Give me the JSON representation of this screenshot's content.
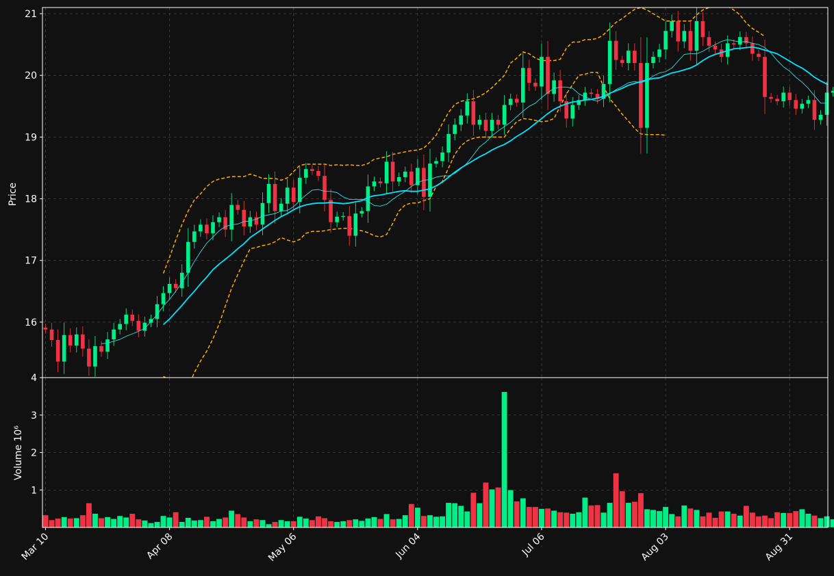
{
  "chart_data": {
    "type": "candlestick",
    "price_panel": {
      "ylabel": "Price",
      "ylim": [
        15.1,
        21.1
      ],
      "yticks": [
        16,
        17,
        18,
        19,
        20,
        21
      ],
      "grid": true
    },
    "volume_panel": {
      "ylabel": "Volume  10⁶",
      "ylim": [
        0,
        4
      ],
      "yticks": [
        1,
        2,
        3,
        4
      ],
      "grid": true
    },
    "xticks": [
      {
        "label": "Mar 10",
        "index": 0
      },
      {
        "label": "Apr 08",
        "index": 20
      },
      {
        "label": "May 06",
        "index": 40
      },
      {
        "label": "Jun 04",
        "index": 60
      },
      {
        "label": "Jul 06",
        "index": 80
      },
      {
        "label": "Aug 03",
        "index": 100
      },
      {
        "label": "Aug 31",
        "index": 120
      }
    ],
    "colors": {
      "background": "#111111",
      "up": "#00ee88",
      "down": "#ee3344",
      "ma_fast": "#33dddd",
      "ma_slow": "#00e5ff",
      "bands": "#ffaa00",
      "axes": "#ffffff",
      "grid": "#444444"
    },
    "close": [
      15.88,
      15.71,
      15.36,
      15.79,
      15.62,
      15.8,
      15.57,
      15.28,
      15.61,
      15.52,
      15.72,
      15.88,
      15.97,
      16.12,
      16.02,
      15.86,
      15.99,
      16.05,
      16.29,
      16.47,
      16.62,
      16.55,
      16.8,
      17.3,
      17.47,
      17.58,
      17.44,
      17.62,
      17.7,
      17.5,
      17.9,
      17.82,
      17.55,
      17.7,
      17.58,
      17.93,
      18.24,
      17.8,
      17.92,
      18.18,
      17.95,
      18.34,
      18.48,
      18.45,
      18.37,
      17.98,
      17.62,
      17.71,
      17.72,
      17.4,
      17.76,
      17.8,
      18.2,
      18.28,
      18.25,
      18.6,
      18.28,
      18.35,
      18.44,
      18.22,
      18.5,
      18.03,
      18.57,
      18.61,
      18.75,
      19.05,
      19.2,
      19.35,
      19.58,
      19.2,
      19.28,
      19.1,
      19.28,
      19.2,
      19.52,
      19.62,
      19.56,
      20.12,
      19.88,
      19.82,
      20.3,
      19.7,
      19.92,
      19.58,
      19.3,
      19.52,
      19.6,
      19.72,
      19.7,
      19.62,
      19.86,
      20.56,
      20.25,
      20.2,
      20.4,
      20.2,
      19.15,
      20.2,
      20.3,
      20.42,
      20.72,
      20.88,
      20.55,
      20.72,
      20.4,
      20.88,
      20.62,
      20.48,
      20.42,
      20.3,
      20.52,
      20.5,
      20.62,
      20.52,
      20.35,
      20.3,
      19.65,
      19.62,
      19.58,
      19.72,
      19.6,
      19.46,
      19.54,
      19.6,
      19.28,
      19.36,
      19.72,
      19.75,
      19.87,
      19.7,
      19.6
    ],
    "sma_fast_start": 9,
    "sma_fast": [
      15.65,
      15.66,
      15.69,
      15.72,
      15.77,
      15.81,
      15.85,
      15.9,
      16.01,
      16.12,
      16.26,
      16.37,
      16.5,
      16.64,
      16.8,
      16.98,
      17.14,
      17.28,
      17.38,
      17.48,
      17.55,
      17.58,
      17.59,
      17.63,
      17.64,
      17.67,
      17.72,
      17.74,
      17.76,
      17.8,
      17.81,
      17.87,
      17.97,
      18.06,
      18.14,
      18.15,
      18.12,
      18.12,
      18.1,
      18.03,
      17.99,
      17.99,
      17.99,
      17.96,
      17.89,
      17.88,
      17.91,
      17.99,
      18.06,
      18.12,
      18.2,
      18.26,
      18.3,
      18.31,
      18.35,
      18.37,
      18.37,
      18.41,
      18.49,
      18.58,
      18.71,
      18.84,
      18.92,
      19.02,
      19.1,
      19.17,
      19.24,
      19.33,
      19.42,
      19.5,
      19.55,
      19.64,
      19.72,
      19.79,
      19.81,
      19.81,
      19.79,
      19.7,
      19.65,
      19.61,
      19.58,
      19.63,
      19.7,
      19.77,
      19.82,
      19.88,
      19.9,
      19.88,
      19.92,
      19.99,
      20.04,
      20.06,
      20.12,
      20.23,
      20.34,
      20.35,
      20.35,
      20.39,
      20.45,
      20.5,
      20.55,
      20.58,
      20.56,
      20.54,
      20.55,
      20.52,
      20.5,
      20.45,
      20.36,
      20.24,
      20.14,
      20.07,
      19.97,
      19.89,
      19.79,
      19.67,
      19.55,
      19.55,
      19.57,
      19.59,
      19.59,
      19.59
    ],
    "sma_slow_start": 19,
    "sma_slow": [
      15.96,
      16.05,
      16.16,
      16.27,
      16.39,
      16.5,
      16.62,
      16.73,
      16.85,
      16.94,
      17.02,
      17.1,
      17.19,
      17.27,
      17.37,
      17.44,
      17.51,
      17.58,
      17.65,
      17.71,
      17.76,
      17.82,
      17.87,
      17.9,
      17.92,
      17.93,
      17.93,
      17.94,
      17.93,
      17.92,
      17.93,
      17.95,
      17.97,
      18.02,
      18.05,
      18.06,
      18.08,
      18.1,
      18.12,
      18.13,
      18.12,
      18.12,
      18.14,
      18.16,
      18.21,
      18.27,
      18.35,
      18.43,
      18.5,
      18.56,
      18.62,
      18.68,
      18.73,
      18.79,
      18.84,
      18.88,
      18.94,
      19.01,
      19.07,
      19.14,
      19.22,
      19.3,
      19.38,
      19.45,
      19.5,
      19.54,
      19.57,
      19.58,
      19.6,
      19.61,
      19.63,
      19.66,
      19.71,
      19.75,
      19.79,
      19.84,
      19.87,
      19.9,
      19.93,
      19.95,
      19.96,
      20.0,
      20.04,
      20.06,
      20.09,
      20.12,
      20.17,
      20.24,
      20.3,
      20.34,
      20.37,
      20.4,
      20.43,
      20.44,
      20.45,
      20.46,
      20.44,
      20.41,
      20.38,
      20.35,
      20.29,
      20.23,
      20.17,
      20.12,
      20.05,
      19.97,
      19.91,
      19.86,
      19.83,
      19.8
    ],
    "band_upper": [
      16.79,
      17.05,
      17.33,
      17.58,
      17.8,
      17.98,
      18.08,
      18.2,
      18.28,
      18.32,
      18.34,
      18.36,
      18.36,
      18.36,
      18.4,
      18.37,
      18.33,
      18.33,
      18.33,
      18.3,
      18.34,
      18.44,
      18.54,
      18.56,
      18.56,
      18.56,
      18.56,
      18.54,
      18.55,
      18.54,
      18.55,
      18.54,
      18.54,
      18.57,
      18.64,
      18.66,
      18.68,
      18.72,
      18.74,
      18.76,
      18.78,
      18.79,
      18.82,
      18.92,
      19.03,
      19.22,
      19.4,
      19.53,
      19.58,
      19.6,
      19.62,
      19.66,
      19.72,
      19.8,
      19.9,
      20.0,
      20.2,
      20.28,
      20.38,
      20.35,
      20.28,
      20.24,
      20.24,
      20.24,
      20.26,
      20.44,
      20.54,
      20.54,
      20.58,
      20.58,
      20.6,
      20.66,
      20.76,
      20.86,
      20.92,
      21.0,
      21.07,
      21.1,
      21.06,
      21.0,
      20.94,
      20.88,
      20.88,
      20.88,
      20.88,
      20.88,
      20.98,
      21.06,
      21.1,
      21.12,
      21.13,
      21.12,
      21.06,
      20.98,
      20.85,
      20.76,
      20.7,
      20.63
    ],
    "band_lower": [
      15.12,
      15.06,
      14.98,
      14.97,
      14.95,
      15.18,
      15.37,
      15.53,
      15.73,
      15.97,
      16.26,
      16.55,
      16.77,
      16.99,
      17.19,
      17.21,
      17.24,
      17.26,
      17.3,
      17.37,
      17.33,
      17.3,
      17.34,
      17.44,
      17.47,
      17.47,
      17.48,
      17.5,
      17.51,
      17.52,
      17.52,
      17.5,
      17.48,
      17.45,
      17.4,
      17.38,
      17.42,
      17.6,
      17.8,
      17.9,
      17.93,
      17.93,
      17.97,
      18.0,
      18.2,
      18.28,
      18.5,
      18.72,
      18.86,
      18.94,
      18.98,
      19.0,
      19.0,
      19.0,
      19.0,
      19.0,
      19.14,
      19.25,
      19.3,
      19.29,
      19.27,
      19.25,
      19.26,
      19.3,
      19.5,
      19.7,
      19.85,
      20.0,
      20.02,
      20.05,
      20.05,
      19.82,
      19.62,
      19.5,
      19.37,
      19.26,
      19.14,
      19.05,
      19.04,
      19.04,
      19.04,
      19.03
    ],
    "volume": [
      0.33,
      0.2,
      0.24,
      0.28,
      0.24,
      0.25,
      0.33,
      0.65,
      0.37,
      0.25,
      0.28,
      0.23,
      0.31,
      0.27,
      0.37,
      0.22,
      0.19,
      0.12,
      0.15,
      0.31,
      0.27,
      0.41,
      0.15,
      0.26,
      0.19,
      0.2,
      0.29,
      0.17,
      0.23,
      0.27,
      0.45,
      0.36,
      0.27,
      0.17,
      0.22,
      0.2,
      0.09,
      0.15,
      0.2,
      0.17,
      0.17,
      0.29,
      0.24,
      0.2,
      0.3,
      0.25,
      0.17,
      0.15,
      0.17,
      0.2,
      0.22,
      0.18,
      0.24,
      0.28,
      0.23,
      0.36,
      0.22,
      0.23,
      0.33,
      0.63,
      0.53,
      0.31,
      0.33,
      0.29,
      0.3,
      0.66,
      0.65,
      0.58,
      0.43,
      0.93,
      0.65,
      1.2,
      1.02,
      1.07,
      3.62,
      1.0,
      0.7,
      0.78,
      0.55,
      0.55,
      0.5,
      0.51,
      0.45,
      0.41,
      0.4,
      0.37,
      0.41,
      0.8,
      0.59,
      0.6,
      0.4,
      0.66,
      1.45,
      0.97,
      0.66,
      0.69,
      0.92,
      0.49,
      0.47,
      0.44,
      0.55,
      0.36,
      0.3,
      0.59,
      0.51,
      0.47,
      0.3,
      0.4,
      0.26,
      0.43,
      0.43,
      0.37,
      0.32,
      0.58,
      0.4,
      0.3,
      0.32,
      0.25,
      0.41,
      0.39,
      0.39,
      0.44,
      0.49,
      0.37,
      0.32,
      0.25,
      0.3,
      0.22,
      0.28,
      0.2,
      0.25
    ]
  }
}
